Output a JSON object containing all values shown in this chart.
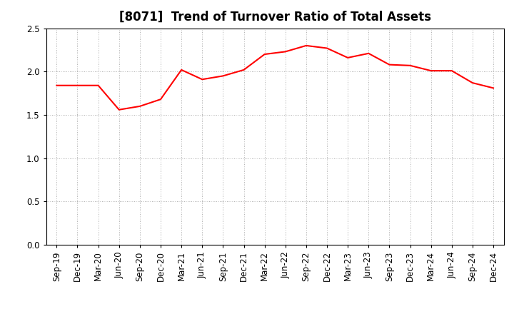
{
  "title": "[8071]  Trend of Turnover Ratio of Total Assets",
  "labels": [
    "Sep-19",
    "Dec-19",
    "Mar-20",
    "Jun-20",
    "Sep-20",
    "Dec-20",
    "Mar-21",
    "Jun-21",
    "Sep-21",
    "Dec-21",
    "Mar-22",
    "Jun-22",
    "Sep-22",
    "Dec-22",
    "Mar-23",
    "Jun-23",
    "Sep-23",
    "Dec-23",
    "Mar-24",
    "Jun-24",
    "Sep-24",
    "Dec-24"
  ],
  "values": [
    1.84,
    1.84,
    1.84,
    1.56,
    1.6,
    1.68,
    2.02,
    1.91,
    1.95,
    2.02,
    2.2,
    2.23,
    2.3,
    2.27,
    2.16,
    2.21,
    2.08,
    2.07,
    2.01,
    2.01,
    1.87,
    1.81
  ],
  "ylim": [
    0.0,
    2.5
  ],
  "yticks": [
    0.0,
    0.5,
    1.0,
    1.5,
    2.0,
    2.5
  ],
  "line_color": "#ff0000",
  "line_width": 1.5,
  "bg_color": "#ffffff",
  "plot_bg_color": "#ffffff",
  "grid_color": "#999999",
  "title_fontsize": 12,
  "tick_fontsize": 8.5
}
